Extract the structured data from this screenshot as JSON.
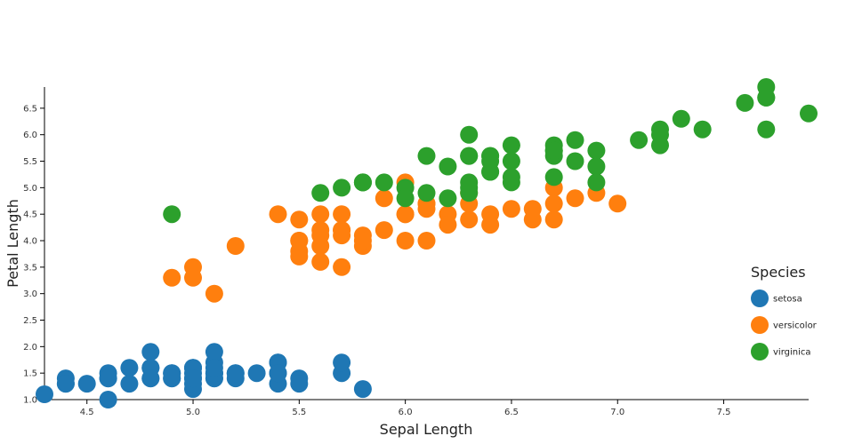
{
  "chart_data": {
    "type": "scatter",
    "title": "",
    "xlabel": "Sepal Length",
    "ylabel": "Petal Length",
    "xlim": [
      4.3,
      7.9
    ],
    "ylim": [
      1.0,
      6.9
    ],
    "xticks": [
      "4.5",
      "5.0",
      "5.5",
      "6.0",
      "6.5",
      "7.0",
      "7.5"
    ],
    "yticks": [
      "1.0",
      "1.5",
      "2.0",
      "2.5",
      "3.0",
      "3.5",
      "4.0",
      "4.5",
      "5.0",
      "5.5",
      "6.0",
      "6.5"
    ],
    "legend": {
      "title": "Species",
      "position": "right"
    },
    "grid": false,
    "series": [
      {
        "name": "setosa",
        "color": "#1f77b4",
        "x": [
          5.1,
          4.9,
          4.7,
          4.6,
          5.0,
          5.4,
          4.6,
          5.0,
          4.4,
          4.9,
          5.4,
          4.8,
          4.8,
          4.3,
          5.8,
          5.7,
          5.4,
          5.1,
          5.7,
          5.1,
          5.4,
          5.1,
          4.6,
          5.1,
          4.8,
          5.0,
          5.0,
          5.2,
          5.2,
          4.7,
          4.8,
          5.4,
          5.2,
          5.5,
          4.9,
          5.0,
          5.5,
          4.9,
          4.4,
          5.1,
          5.0,
          4.5,
          4.4,
          5.0,
          5.1,
          4.8,
          5.1,
          4.6,
          5.3,
          5.0
        ],
        "y": [
          1.4,
          1.4,
          1.3,
          1.5,
          1.4,
          1.7,
          1.4,
          1.5,
          1.4,
          1.5,
          1.5,
          1.6,
          1.4,
          1.1,
          1.2,
          1.5,
          1.3,
          1.4,
          1.7,
          1.5,
          1.7,
          1.5,
          1.0,
          1.7,
          1.9,
          1.6,
          1.6,
          1.5,
          1.4,
          1.6,
          1.6,
          1.5,
          1.5,
          1.4,
          1.5,
          1.2,
          1.3,
          1.4,
          1.3,
          1.5,
          1.3,
          1.3,
          1.3,
          1.6,
          1.9,
          1.4,
          1.6,
          1.4,
          1.5,
          1.4
        ]
      },
      {
        "name": "versicolor",
        "color": "#ff7f0e",
        "x": [
          7.0,
          6.4,
          6.9,
          5.5,
          6.5,
          5.7,
          6.3,
          4.9,
          6.6,
          5.2,
          5.0,
          5.9,
          6.0,
          6.1,
          5.6,
          6.7,
          5.6,
          5.8,
          6.2,
          5.6,
          5.9,
          6.1,
          6.3,
          6.1,
          6.4,
          6.6,
          6.8,
          6.7,
          6.0,
          5.7,
          5.5,
          5.5,
          5.8,
          6.0,
          5.4,
          6.0,
          6.7,
          6.3,
          5.6,
          5.5,
          5.5,
          6.1,
          5.8,
          5.0,
          5.6,
          5.7,
          5.7,
          6.2,
          5.1,
          5.7
        ],
        "y": [
          4.7,
          4.5,
          4.9,
          4.0,
          4.6,
          4.5,
          4.7,
          3.3,
          4.6,
          3.9,
          3.5,
          4.2,
          4.0,
          4.7,
          3.6,
          4.4,
          4.5,
          4.1,
          4.5,
          3.9,
          4.8,
          4.0,
          4.9,
          4.7,
          4.3,
          4.4,
          4.8,
          5.0,
          4.5,
          3.5,
          3.8,
          3.7,
          3.9,
          5.1,
          4.5,
          4.5,
          4.7,
          4.4,
          4.1,
          4.0,
          4.4,
          4.6,
          4.0,
          3.3,
          4.2,
          4.2,
          4.2,
          4.3,
          3.0,
          4.1
        ]
      },
      {
        "name": "virginica",
        "color": "#2ca02c",
        "x": [
          6.3,
          5.8,
          7.1,
          6.3,
          6.5,
          7.6,
          4.9,
          7.3,
          6.7,
          7.2,
          6.5,
          6.4,
          6.8,
          5.7,
          5.8,
          6.4,
          6.5,
          7.7,
          7.7,
          6.0,
          6.9,
          5.6,
          7.7,
          6.3,
          6.7,
          7.2,
          6.2,
          6.1,
          6.4,
          7.2,
          7.4,
          7.9,
          6.4,
          6.3,
          6.1,
          7.7,
          6.3,
          6.4,
          6.0,
          6.9,
          6.7,
          6.9,
          5.8,
          6.8,
          6.7,
          6.7,
          6.3,
          6.5,
          6.2,
          5.9
        ],
        "y": [
          6.0,
          5.1,
          5.9,
          5.6,
          5.8,
          6.6,
          4.5,
          6.3,
          5.8,
          6.1,
          5.1,
          5.3,
          5.5,
          5.0,
          5.1,
          5.3,
          5.5,
          6.7,
          6.9,
          5.0,
          5.7,
          4.9,
          6.7,
          4.9,
          5.7,
          6.0,
          4.8,
          4.9,
          5.6,
          5.8,
          6.1,
          6.4,
          5.6,
          5.1,
          5.6,
          6.1,
          5.6,
          5.5,
          4.8,
          5.4,
          5.6,
          5.1,
          5.1,
          5.9,
          5.7,
          5.2,
          5.0,
          5.2,
          5.4,
          5.1
        ]
      }
    ]
  }
}
